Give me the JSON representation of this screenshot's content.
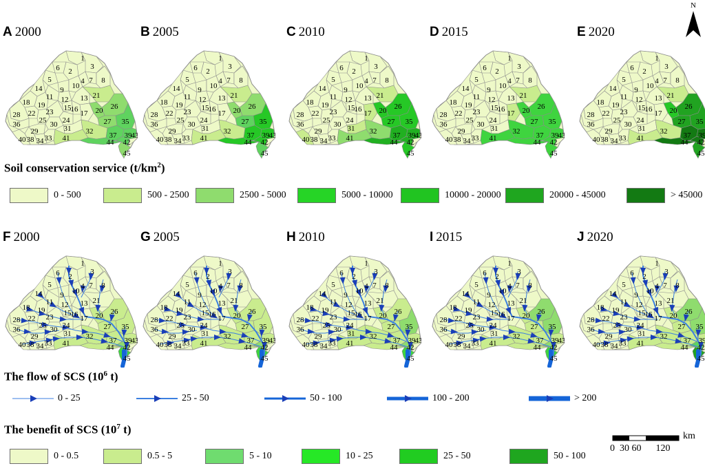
{
  "panels_soil": [
    {
      "letter": "A",
      "year": "2000",
      "colors": {
        "26": "#8fdc6e",
        "20": "#8fdc6e",
        "27": "#8fdc6e",
        "35": "#5fd35f",
        "37": "#5fd35f",
        "39": "#5fd35f",
        "42": "#5fd35f",
        "44": "#5fd35f",
        "45": "#8fdc6e",
        "21": "#c9ec8e",
        "32": "#c9ec8e",
        "41": "#c9ec8e"
      }
    },
    {
      "letter": "B",
      "year": "2005",
      "colors": {
        "26": "#8fdc6e",
        "20": "#8fdc6e",
        "27": "#5fd35f",
        "35": "#26c826",
        "37": "#26c826",
        "39": "#26c826",
        "42": "#26c826",
        "44": "#26c826",
        "45": "#5fd35f",
        "21": "#c9ec8e",
        "32": "#c9ec8e",
        "41": "#c9ec8e"
      }
    },
    {
      "letter": "C",
      "year": "2010",
      "colors": {
        "26": "#26c826",
        "20": "#26c826",
        "27": "#26c826",
        "35": "#26c826",
        "37": "#21b021",
        "39": "#21b021",
        "42": "#21b021",
        "44": "#21b021",
        "45": "#26c826",
        "21": "#c9ec8e",
        "32": "#8fdc6e",
        "41": "#8fdc6e",
        "31": "#c9ec8e",
        "17": "#c9ec8e",
        "40": "#c9ec8e"
      }
    },
    {
      "letter": "D",
      "year": "2015",
      "colors": {
        "26": "#3fd43f",
        "20": "#3fd43f",
        "27": "#3fd43f",
        "35": "#3fd43f",
        "37": "#3fd43f",
        "39": "#3fd43f",
        "42": "#3fd43f",
        "44": "#3fd43f",
        "45": "#3fd43f",
        "32": "#3fd43f",
        "41": "#3fd43f",
        "21": "#c9ec8e",
        "17": "#c9ec8e"
      }
    },
    {
      "letter": "E",
      "year": "2020",
      "colors": {
        "26": "#21a321",
        "20": "#26c826",
        "27": "#21a321",
        "35": "#21a321",
        "37": "#137a13",
        "39": "#137a13",
        "42": "#137a13",
        "44": "#137a13",
        "45": "#21a321",
        "21": "#c9ec8e",
        "32": "#c9ec8e",
        "41": "#c9ec8e"
      }
    }
  ],
  "panels_flow": [
    {
      "letter": "F",
      "year": "2000",
      "colors": {
        "26": "#c9ec8e",
        "35": "#c9ec8e",
        "20": "#c9ec8e",
        "27": "#c9ec8e",
        "37": "#c9ec8e",
        "39": "#c9ec8e",
        "44": "#c9ec8e",
        "42": "#8fdc6e",
        "45": "#3fd43f",
        "32": "#c9ec8e",
        "41": "#c9ec8e"
      }
    },
    {
      "letter": "G",
      "year": "2005",
      "colors": {
        "26": "#c9ec8e",
        "35": "#c9ec8e",
        "20": "#c9ec8e",
        "27": "#c9ec8e",
        "37": "#c9ec8e",
        "39": "#c9ec8e",
        "44": "#c9ec8e",
        "42": "#8fdc6e",
        "45": "#3fd43f",
        "32": "#c9ec8e",
        "41": "#c9ec8e"
      }
    },
    {
      "letter": "H",
      "year": "2010",
      "colors": {
        "26": "#c9ec8e",
        "35": "#8fdc6e",
        "20": "#c9ec8e",
        "27": "#c9ec8e",
        "37": "#c9ec8e",
        "39": "#c9ec8e",
        "44": "#c9ec8e",
        "42": "#8fdc6e",
        "45": "#3fd43f",
        "32": "#c9ec8e",
        "41": "#c9ec8e",
        "31": "#c9ec8e"
      }
    },
    {
      "letter": "I",
      "year": "2015",
      "colors": {
        "26": "#8fdc6e",
        "35": "#8fdc6e",
        "20": "#c9ec8e",
        "27": "#c9ec8e",
        "37": "#c9ec8e",
        "39": "#c9ec8e",
        "44": "#c9ec8e",
        "42": "#8fdc6e",
        "45": "#3fd43f",
        "32": "#c9ec8e",
        "41": "#c9ec8e"
      }
    },
    {
      "letter": "J",
      "year": "2020",
      "colors": {
        "26": "#8fdc6e",
        "35": "#8fdc6e",
        "20": "#c9ec8e",
        "27": "#c9ec8e",
        "37": "#c9ec8e",
        "39": "#c9ec8e",
        "44": "#c9ec8e",
        "42": "#5fd35f",
        "45": "#21a321",
        "32": "#c9ec8e",
        "41": "#c9ec8e"
      }
    }
  ],
  "basin_ids": [
    "1",
    "2",
    "3",
    "4",
    "5",
    "6",
    "7",
    "8",
    "9",
    "10",
    "11",
    "12",
    "13",
    "14",
    "15",
    "16",
    "17",
    "18",
    "19",
    "20",
    "21",
    "22",
    "23",
    "24",
    "25",
    "26",
    "27",
    "28",
    "29",
    "30",
    "31",
    "32",
    "33",
    "34",
    "35",
    "36",
    "37",
    "38",
    "39",
    "40",
    "41",
    "42",
    "43",
    "44",
    "45"
  ],
  "base_color": "#eef9c8",
  "soil_legend": {
    "title": "Soil conservation service (t/km",
    "title_sup": "2",
    "title_end": ")",
    "items": [
      {
        "label": "0 - 500",
        "color": "#eef9c8"
      },
      {
        "label": "500 - 2500",
        "color": "#c9ec8e"
      },
      {
        "label": "2500 - 5000",
        "color": "#8fdc6e"
      },
      {
        "label": "5000 - 10000",
        "color": "#26d426"
      },
      {
        "label": "10000 - 20000",
        "color": "#21c421"
      },
      {
        "label": "20000 - 45000",
        "color": "#1fa61f"
      },
      {
        "label": "> 45000",
        "color": "#137a13"
      }
    ]
  },
  "flow_legend": {
    "title": "The flow of SCS (10",
    "title_sup": "6",
    "title_end": " t)",
    "items": [
      {
        "label": "0 - 25",
        "width": 1
      },
      {
        "label": "25 - 50",
        "width": 2
      },
      {
        "label": "50 - 100",
        "width": 3
      },
      {
        "label": "100 - 200",
        "width": 5
      },
      {
        "label": "> 200",
        "width": 7
      }
    ]
  },
  "benefit_legend": {
    "title": "The benefit of SCS (10",
    "title_sup": "7",
    "title_end": " t)",
    "items": [
      {
        "label": "0 - 0.5",
        "color": "#eef9c8"
      },
      {
        "label": "0.5 - 5",
        "color": "#c9ec8e"
      },
      {
        "label": "5 - 10",
        "color": "#6fdc6f"
      },
      {
        "label": "10 - 25",
        "color": "#26e826"
      },
      {
        "label": "25 - 50",
        "color": "#21cc21"
      },
      {
        "label": "50 - 100",
        "color": "#1fa61f"
      }
    ]
  },
  "north_label": "N",
  "scale": {
    "unit": "km",
    "ticks": "0  30 60      120"
  },
  "flow_color": "#1a3fb8"
}
